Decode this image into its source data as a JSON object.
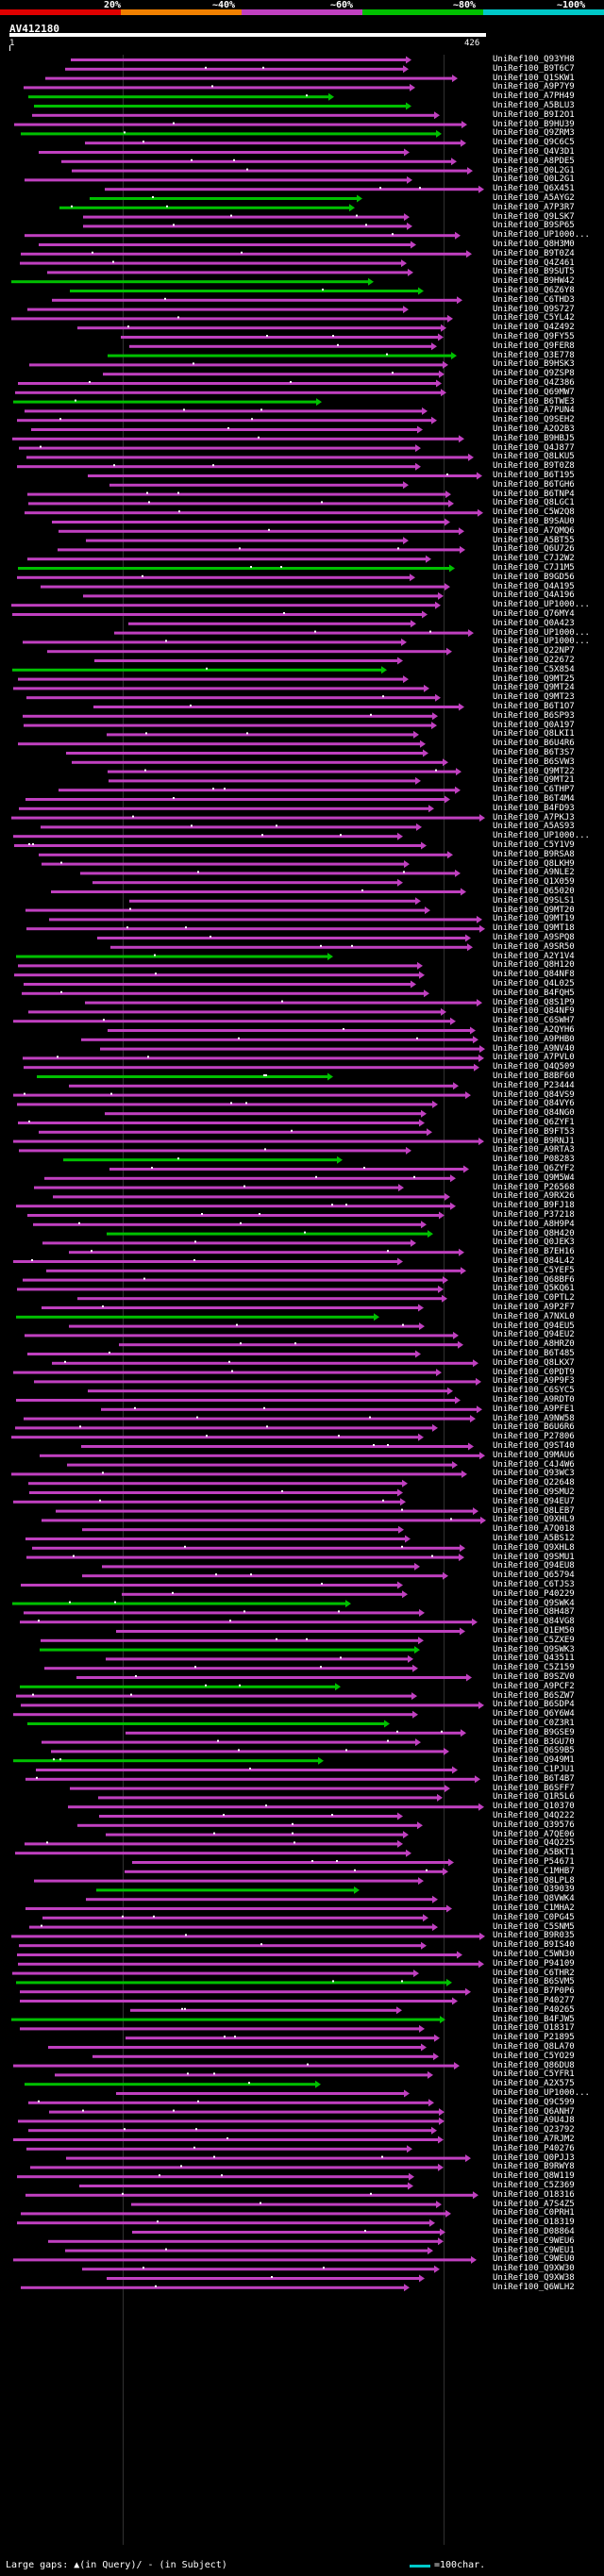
{
  "scale": {
    "labels": [
      "20%",
      "~40%",
      "~60%",
      "~80%",
      "~100%"
    ],
    "colors": [
      "#e00000",
      "#f08000",
      "#c040c0",
      "#00c000",
      "#00c8c8"
    ]
  },
  "query": {
    "id": "AV412180",
    "start": "1",
    "end": "426"
  },
  "hit_colors": {
    "magenta": "#c040c0",
    "green": "#00c000",
    "gap_mark": "#ffffff"
  },
  "hits": [
    "UniRef100_Q93YH8",
    "UniRef100_B9T6C7",
    "UniRef100_Q1SKW1",
    "UniRef100_A9P7Y9",
    "UniRef100_A7PH49",
    "UniRef100_A5BLU3",
    "UniRef100_B9I2O1",
    "UniRef100_B9HU39",
    "UniRef100_Q9ZRM3",
    "UniRef100_Q9C6C5",
    "UniRef100_Q4V3D1",
    "UniRef100_A8PDE5",
    "UniRef100_Q0L2G1",
    "UniRef100_Q0L2G1",
    "UniRef100_Q6X451",
    "UniRef100_A5AYG2",
    "UniRef100_A7P3R7",
    "UniRef100_Q9LSK7",
    "UniRef100_B9SP65",
    "UniRef100_UP1000...",
    "UniRef100_Q8H3M0",
    "UniRef100_B9T0Z4",
    "UniRef100_Q4Z461",
    "UniRef100_B9SUT5",
    "UniRef100_B9HW42",
    "UniRef100_Q6Z6Y8",
    "UniRef100_C6THD3",
    "UniRef100_Q9S727",
    "UniRef100_C5YL42",
    "UniRef100_Q4Z492",
    "UniRef100_Q9FY55",
    "UniRef100_Q9FER8",
    "UniRef100_O3E778",
    "UniRef100_B9HSK3",
    "UniRef100_Q9ZSP8",
    "UniRef100_Q4Z386",
    "UniRef100_Q69MW7",
    "UniRef100_B6TWE3",
    "UniRef100_A7PUN4",
    "UniRef100_Q9SEH2",
    "UniRef100_A2O2B3",
    "UniRef100_B9HBJ5",
    "UniRef100_Q4J877",
    "UniRef100_Q8LKU5",
    "UniRef100_B9T0Z8",
    "UniRef100_B6T195",
    "UniRef100_B6TGH6",
    "UniRef100_B6TNP4",
    "UniRef100_Q8LGC1",
    "UniRef100_C5W2Q8",
    "UniRef100_B9SAU0",
    "UniRef100_A7QMQ6",
    "UniRef100_A5BT55",
    "UniRef100_Q6U726",
    "UniRef100_C7J2W2",
    "UniRef100_C7J1M5",
    "UniRef100_B9GD56",
    "UniRef100_Q4A195",
    "UniRef100_Q4A196",
    "UniRef100_UP1000...",
    "UniRef100_Q76MY4",
    "UniRef100_Q0A423",
    "UniRef100_UP1000...",
    "UniRef100_UP1000...",
    "UniRef100_Q22NP7",
    "UniRef100_Q22672",
    "UniRef100_C5X854",
    "UniRef100_Q9MT25",
    "UniRef100_Q9MT24",
    "UniRef100_Q9MT23",
    "UniRef100_B6T1O7",
    "UniRef100_B6SP93",
    "UniRef100_Q0A197",
    "UniRef100_Q8LKI1",
    "UniRef100_B6U4R6",
    "UniRef100_B6T3S7",
    "UniRef100_B6SVW3",
    "UniRef100_Q9MT22",
    "UniRef100_Q9MT21",
    "UniRef100_C6THP7",
    "UniRef100_B6T4M4",
    "UniRef100_B4FD93",
    "UniRef100_A7PKJ3",
    "UniRef100_A5AS93",
    "UniRef100_UP1000...",
    "UniRef100_C5Y1V9",
    "UniRef100_B9RSA8",
    "UniRef100_Q8LKH9",
    "UniRef100_A9NLE2",
    "UniRef100_Q1X059",
    "UniRef100_Q65020",
    "UniRef100_Q9SLS1",
    "UniRef100_Q9MT20",
    "UniRef100_Q9MT19",
    "UniRef100_Q9MT18",
    "UniRef100_A9SPQ8",
    "UniRef100_A9SR50",
    "UniRef100_A2Y1V4",
    "UniRef100_Q8H120",
    "UniRef100_Q84NF8",
    "UniRef100_Q4L025",
    "UniRef100_B4FQH5",
    "UniRef100_Q8S1P9",
    "UniRef100_Q84NF9",
    "UniRef100_C6SWH7",
    "UniRef100_A2QYH6",
    "UniRef100_A9PHB0",
    "UniRef100_A9NV40",
    "UniRef100_A7PVL0",
    "UniRef100_Q4Q509",
    "UniRef100_B8BF60",
    "UniRef100_P23444",
    "UniRef100_Q84VS9",
    "UniRef100_Q84VY6",
    "UniRef100_Q84NG0",
    "UniRef100_Q6ZYF1",
    "UniRef100_B9FT53",
    "UniRef100_B9RNJ1",
    "UniRef100_A9RTA3",
    "UniRef100_P08283",
    "UniRef100_Q6ZYF2",
    "UniRef100_Q9M5W4",
    "UniRef100_P26568",
    "UniRef100_A9RX26",
    "UniRef100_B9FJ18",
    "UniRef100_P37218",
    "UniRef100_A8H9P4",
    "UniRef100_Q8H420",
    "UniRef100_Q0JEK3",
    "UniRef100_B7EH16",
    "UniRef100_Q84L42",
    "UniRef100_C5YEF5",
    "UniRef100_Q68BF6",
    "UniRef100_Q5KQ61",
    "UniRef100_C0PTL2",
    "UniRef100_A9P2F7",
    "UniRef100_A7NXL0",
    "UniRef100_Q94EU5",
    "UniRef100_Q94EU2",
    "UniRef100_A8HRZ0",
    "UniRef100_B6T485",
    "UniRef100_Q8LKX7",
    "UniRef100_C0PDT9",
    "UniRef100_A9P9F3",
    "UniRef100_C6SYC5",
    "UniRef100_A9RDT0",
    "UniRef100_A9PFE1",
    "UniRef100_A9NW58",
    "UniRef100_B6U6R6",
    "UniRef100_P27806",
    "UniRef100_Q9ST40",
    "UniRef100_Q9MAU6",
    "UniRef100_C4J4W6",
    "UniRef100_Q93WC3",
    "UniRef100_Q22648",
    "UniRef100_Q9SMU2",
    "UniRef100_Q94EU7",
    "UniRef100_Q8LEB7",
    "UniRef100_Q9XHL9",
    "UniRef100_A7Q018",
    "UniRef100_A5BS12",
    "UniRef100_Q9XHL8",
    "UniRef100_Q9SMU1",
    "UniRef100_Q94EU8",
    "UniRef100_Q65794",
    "UniRef100_C6TJS3",
    "UniRef100_P40229",
    "UniRef100_Q9SWK4",
    "UniRef100_Q8H487",
    "UniRef100_Q84VG8",
    "UniRef100_Q1EM50",
    "UniRef100_C5ZXE9",
    "UniRef100_Q9SWK3",
    "UniRef100_Q43511",
    "UniRef100_C5Z159",
    "UniRef100_B9SZV0",
    "UniRef100_A9PCF2",
    "UniRef100_B6SZW7",
    "UniRef100_B6SDP4",
    "UniRef100_Q6Y6W4",
    "UniRef100_C0Z3R1",
    "UniRef100_B9GSE9",
    "UniRef100_B3GU70",
    "UniRef100_Q6S9B5",
    "UniRef100_Q949M1",
    "UniRef100_C1PJU1",
    "UniRef100_B6T4B7",
    "UniRef100_B6SFF7",
    "UniRef100_Q1R5L6",
    "UniRef100_Q10370",
    "UniRef100_Q4Q222",
    "UniRef100_Q39576",
    "UniRef100_A7QE06",
    "UniRef100_Q4Q225",
    "UniRef100_A5BKT1",
    "UniRef100_P54671",
    "UniRef100_C1MHB7",
    "UniRef100_Q8LPL8",
    "UniRef100_Q39039",
    "UniRef100_Q8VWK4",
    "UniRef100_C1MHA2",
    "UniRef100_C0PG45",
    "UniRef100_C5SNM5",
    "UniRef100_B9R035",
    "UniRef100_B9IS40",
    "UniRef100_C5WN30",
    "UniRef100_P94109",
    "UniRef100_C6THR2",
    "UniRef100_B6SVM5",
    "UniRef100_B7P0P6",
    "UniRef100_P40277",
    "UniRef100_P40265",
    "UniRef100_B4FJW5",
    "UniRef100_O18317",
    "UniRef100_P21895",
    "UniRef100_Q8LA70",
    "UniRef100_C5YO29",
    "UniRef100_Q86DU8",
    "UniRef100_C5YFR1",
    "UniRef100_A2X575",
    "UniRef100_UP1000...",
    "UniRef100_Q9C599",
    "UniRef100_Q6ANH7",
    "UniRef100_A9U4J8",
    "UniRef100_Q23792",
    "UniRef100_A7RJM2",
    "UniRef100_P40276",
    "UniRef100_Q0PJJ3",
    "UniRef100_B9RWY8",
    "UniRef100_Q8W119",
    "UniRef100_C5Z369",
    "UniRef100_O18316",
    "UniRef100_A7S4Z5",
    "UniRef100_C0PRH1",
    "UniRef100_O18319",
    "UniRef100_D08864",
    "UniRef100_C9WEU6",
    "UniRef100_C9WEU1",
    "UniRef100_C9WEU0",
    "UniRef100_Q9XW30",
    "UniRef100_Q9XW38",
    "UniRef100_Q6WLH2"
  ],
  "footer": {
    "large_gaps_text": "Large gaps: ▲(in Query)/ - (in Subject)",
    "legend_text": "=100char."
  }
}
